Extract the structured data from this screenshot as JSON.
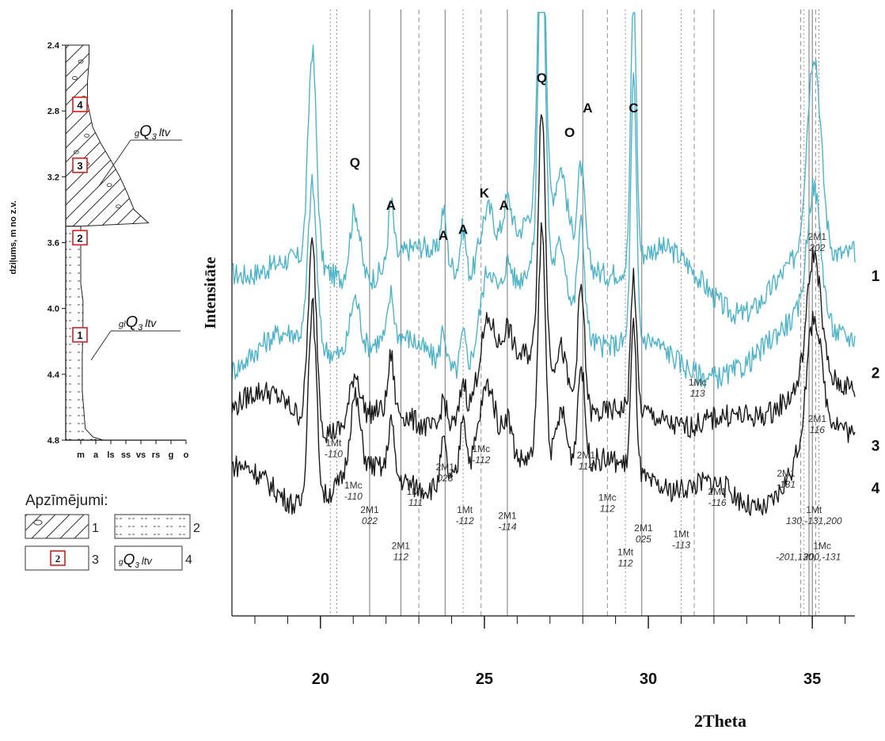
{
  "column": {
    "ylabel": "dziļums, m no z.v.",
    "depth_range": [
      2.4,
      4.8
    ],
    "depth_ticks": [
      "2.4",
      "2.8",
      "3.2",
      "3.6",
      "4.0",
      "4.4",
      "4.8"
    ],
    "grain_labels": [
      "m",
      "a",
      "ls",
      "ss",
      "vs",
      "rs",
      "g",
      "o"
    ],
    "samples": [
      {
        "label": "4",
        "depth": 2.76
      },
      {
        "label": "3",
        "depth": 3.13
      },
      {
        "label": "2",
        "depth": 3.57
      },
      {
        "label": "1",
        "depth": 4.16
      }
    ],
    "units": [
      {
        "label": "gQ3ltv",
        "prefix": "g",
        "main": "Q",
        "sub": "3",
        "suffix": "ltv",
        "top": 2.4,
        "bottom": 3.5,
        "pattern": "till"
      },
      {
        "label": "glQ3ltv",
        "prefix": "gl",
        "main": "Q",
        "sub": "3",
        "suffix": "ltv",
        "top": 3.5,
        "bottom": 4.8,
        "pattern": "clay"
      }
    ],
    "profile": [
      [
        2.4,
        1.55
      ],
      [
        2.5,
        1.55
      ],
      [
        2.62,
        1.45
      ],
      [
        2.75,
        1.45
      ],
      [
        2.9,
        1.8
      ],
      [
        3.0,
        2.35
      ],
      [
        3.1,
        3.0
      ],
      [
        3.2,
        3.6
      ],
      [
        3.3,
        4.1
      ],
      [
        3.4,
        4.55
      ],
      [
        3.48,
        5.5
      ],
      [
        3.5,
        1.0
      ],
      [
        3.6,
        1.0
      ],
      [
        3.85,
        1.0
      ],
      [
        3.95,
        1.15
      ],
      [
        4.1,
        1.15
      ],
      [
        4.3,
        1.1
      ],
      [
        4.5,
        1.1
      ],
      [
        4.73,
        1.3
      ],
      [
        4.78,
        1.8
      ],
      [
        4.8,
        2.5
      ]
    ]
  },
  "legend": {
    "title": "Apzīmējumi:",
    "items": [
      {
        "num": "1",
        "kind": "till"
      },
      {
        "num": "2",
        "kind": "clay"
      },
      {
        "num": "3",
        "kind": "sample",
        "sample_label": "2"
      },
      {
        "num": "4",
        "kind": "unit",
        "prefix": "g",
        "main": "Q",
        "sub": "3",
        "suffix": "ltv"
      }
    ]
  },
  "chart_data": {
    "type": "line",
    "xlabel": "2Theta",
    "ylabel": "Intensitāte",
    "xlim": [
      17.3,
      36.3
    ],
    "ylim": [
      0,
      100
    ],
    "xticks": [
      20,
      25,
      30,
      35
    ],
    "grid": false,
    "series": [
      {
        "name": "1",
        "color": "#4fb3c8",
        "base": 57,
        "noise": 1.2,
        "peaks": [
          [
            19.75,
            35,
            0.18
          ],
          [
            21.05,
            12,
            0.22
          ],
          [
            22.15,
            10,
            0.12
          ],
          [
            23.75,
            8,
            0.12
          ],
          [
            24.35,
            8,
            0.12
          ],
          [
            25.1,
            12,
            0.35
          ],
          [
            25.7,
            9,
            0.2
          ],
          [
            26.75,
            60,
            0.15
          ],
          [
            27.35,
            8,
            0.2
          ],
          [
            27.95,
            14,
            0.15
          ],
          [
            29.55,
            45,
            0.12
          ],
          [
            35.05,
            33,
            0.3
          ]
        ],
        "bumps": [
          [
            26.8,
            10,
            1.2
          ],
          [
            36,
            4,
            1.8
          ],
          [
            18,
            2,
            1.5
          ]
        ]
      },
      {
        "name": "2",
        "color": "#4fb3c8",
        "base": 44,
        "noise": 1.2,
        "peaks": [
          [
            19.75,
            26,
            0.18
          ],
          [
            21.05,
            9,
            0.22
          ],
          [
            22.15,
            7,
            0.12
          ],
          [
            23.75,
            6,
            0.12
          ],
          [
            24.35,
            6,
            0.12
          ],
          [
            25.1,
            13,
            0.35
          ],
          [
            25.7,
            7,
            0.2
          ],
          [
            26.75,
            58,
            0.15
          ],
          [
            27.35,
            7,
            0.2
          ],
          [
            27.95,
            17,
            0.15
          ],
          [
            29.55,
            43,
            0.12
          ],
          [
            35.05,
            22,
            0.3
          ]
        ],
        "bumps": [
          [
            26.8,
            12,
            1.2
          ],
          [
            35,
            6,
            1.3
          ]
        ]
      },
      {
        "name": "3",
        "color": "#1a1a1a",
        "base": 33,
        "noise": 1.2,
        "peaks": [
          [
            19.75,
            30,
            0.18
          ],
          [
            21.05,
            8,
            0.22
          ],
          [
            22.15,
            9,
            0.12
          ],
          [
            23.75,
            5,
            0.12
          ],
          [
            24.35,
            6,
            0.12
          ],
          [
            25.1,
            11,
            0.35
          ],
          [
            25.7,
            6,
            0.2
          ],
          [
            26.75,
            42,
            0.15
          ],
          [
            27.35,
            6,
            0.2
          ],
          [
            27.95,
            20,
            0.15
          ],
          [
            29.55,
            22,
            0.12
          ],
          [
            35.05,
            21,
            0.3
          ]
        ],
        "bumps": [
          [
            26.8,
            10,
            1.2
          ],
          [
            35,
            10,
            1.3
          ]
        ]
      },
      {
        "name": "4",
        "color": "#1a1a1a",
        "base": 22,
        "noise": 1.2,
        "peaks": [
          [
            19.75,
            33,
            0.18
          ],
          [
            21.05,
            12,
            0.22
          ],
          [
            22.15,
            9,
            0.12
          ],
          [
            23.75,
            7,
            0.12
          ],
          [
            24.35,
            10,
            0.12
          ],
          [
            25.1,
            13,
            0.35
          ],
          [
            25.7,
            7,
            0.2
          ],
          [
            26.75,
            38,
            0.15
          ],
          [
            27.35,
            8,
            0.2
          ],
          [
            27.95,
            16,
            0.15
          ],
          [
            29.55,
            24,
            0.12
          ],
          [
            35.05,
            19,
            0.3
          ]
        ],
        "bumps": [
          [
            26.8,
            8,
            1.2
          ],
          [
            35,
            10,
            1.3
          ]
        ]
      }
    ],
    "peak_letters": [
      {
        "text": "Q",
        "x": 21.05,
        "y": 74
      },
      {
        "text": "A",
        "x": 22.15,
        "y": 67
      },
      {
        "text": "A",
        "x": 23.75,
        "y": 62
      },
      {
        "text": "A",
        "x": 24.35,
        "y": 63
      },
      {
        "text": "K",
        "x": 25.0,
        "y": 69
      },
      {
        "text": "A",
        "x": 25.6,
        "y": 67
      },
      {
        "text": "Q",
        "x": 26.75,
        "y": 88
      },
      {
        "text": "O",
        "x": 27.6,
        "y": 79
      },
      {
        "text": "A",
        "x": 28.15,
        "y": 83
      },
      {
        "text": "C",
        "x": 29.55,
        "y": 83
      }
    ],
    "vlines": [
      {
        "x": 20.3,
        "style": "dotted"
      },
      {
        "x": 20.5,
        "style": "dotted"
      },
      {
        "x": 21.5,
        "style": "solid"
      },
      {
        "x": 22.45,
        "style": "solid"
      },
      {
        "x": 23.0,
        "style": "dashed"
      },
      {
        "x": 23.8,
        "style": "solid"
      },
      {
        "x": 24.35,
        "style": "dotted"
      },
      {
        "x": 24.9,
        "style": "dashed"
      },
      {
        "x": 25.7,
        "style": "solid"
      },
      {
        "x": 28.0,
        "style": "solid"
      },
      {
        "x": 28.75,
        "style": "dashed"
      },
      {
        "x": 29.3,
        "style": "dotted"
      },
      {
        "x": 29.8,
        "style": "solid"
      },
      {
        "x": 31.0,
        "style": "dotted"
      },
      {
        "x": 31.4,
        "style": "dashed"
      },
      {
        "x": 32.0,
        "style": "solid"
      },
      {
        "x": 34.65,
        "style": "dashed"
      },
      {
        "x": 34.75,
        "style": "dotted"
      },
      {
        "x": 34.9,
        "style": "solid"
      },
      {
        "x": 35.0,
        "style": "solid"
      },
      {
        "x": 35.1,
        "style": "dashed"
      },
      {
        "x": 35.2,
        "style": "dotted"
      }
    ],
    "phase_labels": [
      {
        "name": "1Mt",
        "hkl": "-110",
        "x": 20.4,
        "y": 28
      },
      {
        "name": "1Mc",
        "hkl": "-110",
        "x": 21.0,
        "y": 21
      },
      {
        "name": "2M1",
        "hkl": "022",
        "x": 21.5,
        "y": 17
      },
      {
        "name": "2M1",
        "hkl": "112",
        "x": 22.45,
        "y": 11
      },
      {
        "name": "1Mc",
        "hkl": "111",
        "x": 22.9,
        "y": 20
      },
      {
        "name": "2M1",
        "hkl": "023",
        "x": 23.8,
        "y": 24
      },
      {
        "name": "1Mt",
        "hkl": "-112",
        "x": 24.4,
        "y": 17
      },
      {
        "name": "1Mc",
        "hkl": "-112",
        "x": 24.9,
        "y": 27
      },
      {
        "name": "2M1",
        "hkl": "-114",
        "x": 25.7,
        "y": 16
      },
      {
        "name": "2M1",
        "hkl": "114",
        "x": 28.1,
        "y": 26
      },
      {
        "name": "1Mc",
        "hkl": "112",
        "x": 28.75,
        "y": 19
      },
      {
        "name": "1Mt",
        "hkl": "112",
        "x": 29.3,
        "y": 10
      },
      {
        "name": "2M1",
        "hkl": "025",
        "x": 29.85,
        "y": 14
      },
      {
        "name": "1Mc",
        "hkl": "113",
        "x": 31.5,
        "y": 38
      },
      {
        "name": "1Mt",
        "hkl": "-113",
        "x": 31.0,
        "y": 13
      },
      {
        "name": "2M1",
        "hkl": "-116",
        "x": 32.1,
        "y": 20
      },
      {
        "name": "2M1",
        "hkl": "-131",
        "x": 34.2,
        "y": 23
      },
      {
        "name": "1Mt",
        "hkl": "130,-131,200",
        "x": 35.05,
        "y": 17
      },
      {
        "name": "1Mc",
        "hkl": "200,-131",
        "x": 35.3,
        "y": 11
      },
      {
        "name": "",
        "hkl": "-201,130,",
        "x": 34.5,
        "y": 11
      },
      {
        "name": "2M1",
        "hkl": "202",
        "x": 35.15,
        "y": 62
      },
      {
        "name": "2M1",
        "hkl": "116",
        "x": 35.15,
        "y": 32
      }
    ],
    "series_end_labels": [
      {
        "text": "1",
        "y": 56
      },
      {
        "text": "2",
        "y": 40
      },
      {
        "text": "3",
        "y": 28
      },
      {
        "text": "4",
        "y": 21
      }
    ]
  }
}
